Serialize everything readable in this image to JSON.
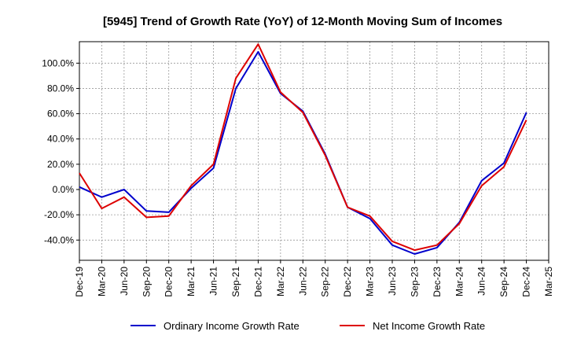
{
  "chart_data": {
    "type": "line",
    "title": "[5945]  Trend of Growth Rate (YoY) of 12-Month Moving Sum of Incomes",
    "xlabel": "",
    "ylabel": "",
    "x": [
      "Dec-19",
      "Mar-20",
      "Jun-20",
      "Sep-20",
      "Dec-20",
      "Mar-21",
      "Jun-21",
      "Sep-21",
      "Dec-21",
      "Mar-22",
      "Jun-22",
      "Sep-22",
      "Dec-22",
      "Mar-23",
      "Jun-23",
      "Sep-23",
      "Dec-23",
      "Mar-24",
      "Jun-24",
      "Sep-24",
      "Dec-24",
      "Mar-25"
    ],
    "yticks": [
      -40,
      -20,
      0,
      20,
      40,
      60,
      80,
      100
    ],
    "ytick_labels": [
      "-40.0%",
      "-20.0%",
      "0.0%",
      "20.0%",
      "40.0%",
      "60.0%",
      "80.0%",
      "100.0%"
    ],
    "ylim": [
      -56,
      117
    ],
    "grid": true,
    "legend_position": "bottom",
    "series": [
      {
        "name": "Ordinary Income Growth Rate",
        "color": "#0000cc",
        "values": [
          2,
          -6,
          0,
          -17,
          -18,
          1,
          17,
          80,
          109,
          76,
          62,
          28,
          -14,
          -23,
          -44,
          -51,
          -46,
          -26,
          7,
          21,
          61,
          null
        ]
      },
      {
        "name": "Net Income Growth Rate",
        "color": "#dd0000",
        "values": [
          13,
          -15,
          -6,
          -22,
          -21,
          3,
          20,
          88,
          115,
          77,
          61,
          27,
          -14,
          -21,
          -41,
          -48,
          -44,
          -27,
          3,
          18,
          55,
          null
        ]
      }
    ]
  }
}
